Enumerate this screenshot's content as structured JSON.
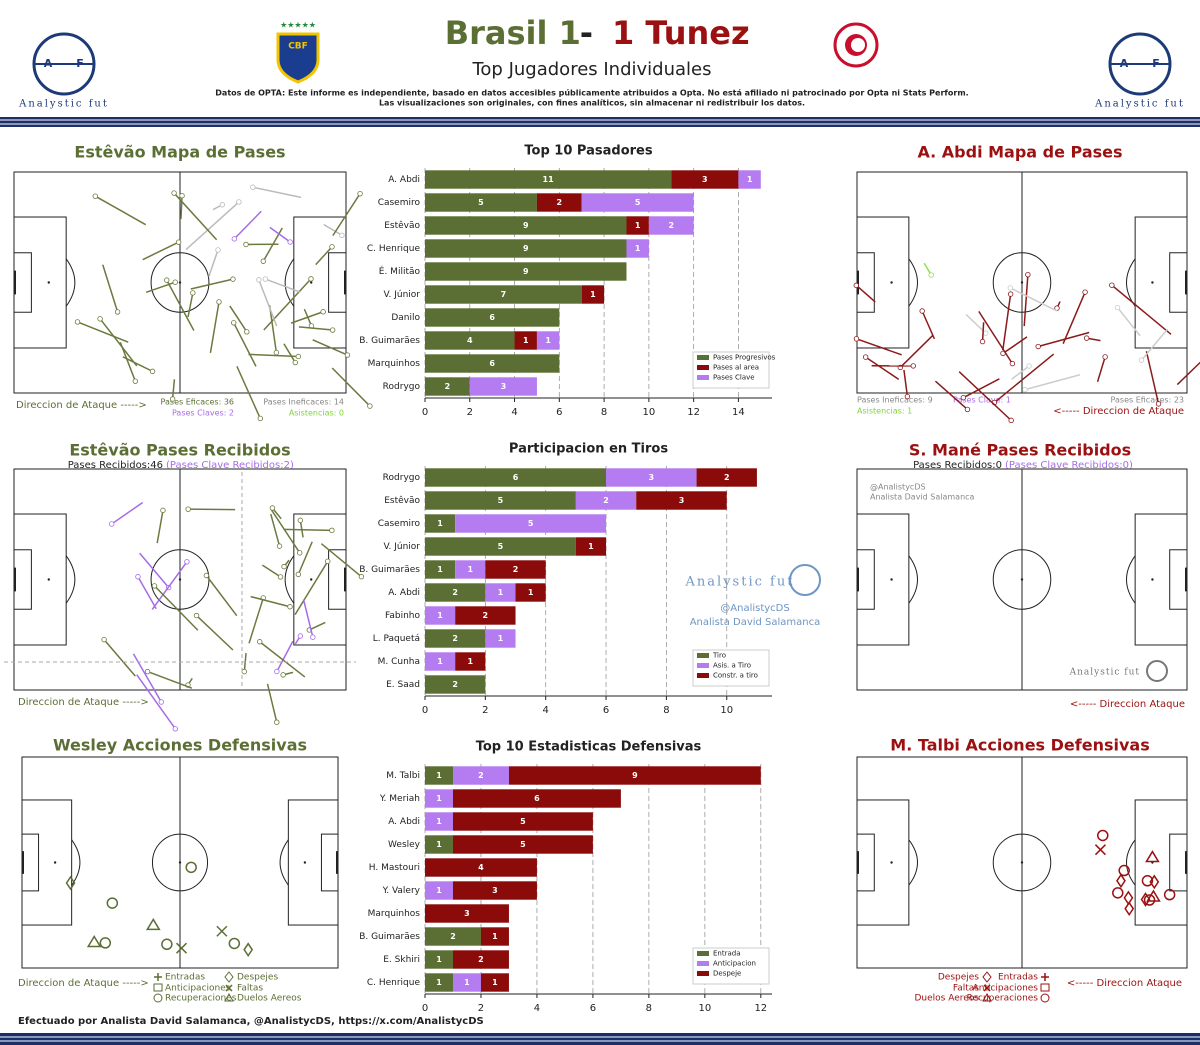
{
  "header": {
    "title_home": "Brasil 1",
    "title_sep": "-",
    "title_away": "1 Tunez",
    "subtitle": "Top Jugadores Individuales",
    "disclaimer": [
      "Datos de OPTA: Este informe es independiente, basado en datos accesibles públicamente atribuidos a Opta. No está afiliado ni patrocinado por Opta ni Stats Perform.",
      "Las visualizaciones son originales, con fines analíticos, sin almacenar ni redistribuir los datos."
    ],
    "logo_text": "Analystic fut",
    "logo_letters": [
      "A",
      "F"
    ],
    "cbf": "CBF"
  },
  "panels": {
    "home_passes": {
      "title": "Estêvão Mapa de Pases",
      "direction": "Direccion de Ataque ----->",
      "effective": "Pases Eficaces: 36",
      "ineffective": "Pases Ineficaces: 14",
      "key": "Pases Claves: 2",
      "assists": "Asistencias: 0"
    },
    "away_passes": {
      "title": "A. Abdi Mapa de Pases",
      "direction": "<----- Direccion de Ataque",
      "effective": "Pases Eficaces: 23",
      "ineffective": "Pases Ineficaces: 9",
      "key": "Pases Clave: 1",
      "assists": "Asistencias: 1"
    },
    "home_received": {
      "title": "Estêvão Pases Recibidos",
      "received": "Pases Recibidos:46",
      "key_received": "(Pases Clave Recibidos:2)",
      "direction": "Direccion de Ataque ----->"
    },
    "away_received": {
      "title": "S. Mané Pases Recibidos",
      "received": "Pases Recibidos:0",
      "key_received": "(Pases Clave Recibidos:0)",
      "direction": "<----- Direccion Ataque"
    },
    "home_defense": {
      "title": "Wesley Acciones Defensivas",
      "direction": "Direccion de Ataque ----->"
    },
    "away_defense": {
      "title": "M. Talbi Acciones Defensivas",
      "direction": "<----- Direccion Ataque"
    },
    "defense_legend": [
      "Entradas",
      "Anticipaciones",
      "Recuperaciones",
      "Despejes",
      "Faltas",
      "Duelos Aereos"
    ]
  },
  "watermark": {
    "handle": "@AnalistycDS",
    "author": "Analista David Salamanca"
  },
  "footer": "Efectuado por Analista David Salamanca, @AnalistycDS, https://x.com/AnalistycDS",
  "chart_data": [
    {
      "type": "stacked-barh",
      "title": "Top 10 Pasadores",
      "categories": [
        "A. Abdi",
        "Casemiro",
        "Estêvão",
        "C. Henrique",
        "É. Militão",
        "V. Júnior",
        "Danilo",
        "B. Guimarães",
        "Marquinhos",
        "Rodrygo"
      ],
      "series": [
        {
          "name": "Pases Progresivos",
          "color": "#5b6e34",
          "values": [
            11,
            5,
            9,
            9,
            9,
            7,
            6,
            4,
            6,
            2
          ]
        },
        {
          "name": "Pases al area",
          "color": "#8b0a0a",
          "values": [
            3,
            2,
            1,
            0,
            0,
            1,
            0,
            1,
            0,
            0
          ]
        },
        {
          "name": "Pases Clave",
          "color": "#b57bf0",
          "values": [
            1,
            5,
            2,
            1,
            0,
            0,
            0,
            1,
            0,
            3
          ]
        }
      ],
      "xlim": [
        0,
        15.5
      ],
      "xticks": [
        0,
        2,
        4,
        6,
        8,
        10,
        12,
        14
      ],
      "grid": true,
      "legend": "lower right"
    },
    {
      "type": "stacked-barh",
      "title": "Participacion en Tiros",
      "categories": [
        "Rodrygo",
        "Estêvão",
        "Casemiro",
        "V. Júnior",
        "B. Guimarães",
        "A. Abdi",
        "Fabinho",
        "L. Paquetá",
        "M. Cunha",
        "E. Saad"
      ],
      "series": [
        {
          "name": "Tiro",
          "color": "#5b6e34",
          "values": [
            6,
            5,
            1,
            5,
            1,
            2,
            0,
            2,
            0,
            2
          ]
        },
        {
          "name": "Asis. a Tiro",
          "color": "#b57bf0",
          "values": [
            3,
            2,
            5,
            0,
            1,
            1,
            1,
            1,
            1,
            0
          ]
        },
        {
          "name": "Constr. a tiro",
          "color": "#8b0a0a",
          "values": [
            2,
            3,
            0,
            1,
            2,
            1,
            2,
            0,
            1,
            0
          ]
        }
      ],
      "xlim": [
        0,
        11.5
      ],
      "xticks": [
        0,
        2,
        4,
        6,
        8,
        10
      ],
      "grid": true,
      "legend": "lower right"
    },
    {
      "type": "stacked-barh",
      "title": "Top 10 Estadisticas Defensivas",
      "categories": [
        "M. Talbi",
        "Y. Meriah",
        "A. Abdi",
        "Wesley",
        "H. Mastouri",
        "Y. Valery",
        "Marquinhos",
        "B. Guimarães",
        "E. Skhiri",
        "C. Henrique"
      ],
      "series": [
        {
          "name": "Entrada",
          "color": "#5b6e34",
          "values": [
            1,
            0,
            0,
            1,
            0,
            0,
            0,
            2,
            1,
            1
          ]
        },
        {
          "name": "Anticipacion",
          "color": "#b57bf0",
          "values": [
            2,
            1,
            1,
            0,
            0,
            1,
            0,
            0,
            0,
            1
          ]
        },
        {
          "name": "Despeje",
          "color": "#8b0a0a",
          "values": [
            9,
            6,
            5,
            5,
            4,
            3,
            3,
            1,
            2,
            1
          ]
        }
      ],
      "xlim": [
        0,
        12.4
      ],
      "xticks": [
        0,
        2,
        4,
        6,
        8,
        10,
        12
      ],
      "grid": true,
      "legend": "lower right"
    }
  ]
}
